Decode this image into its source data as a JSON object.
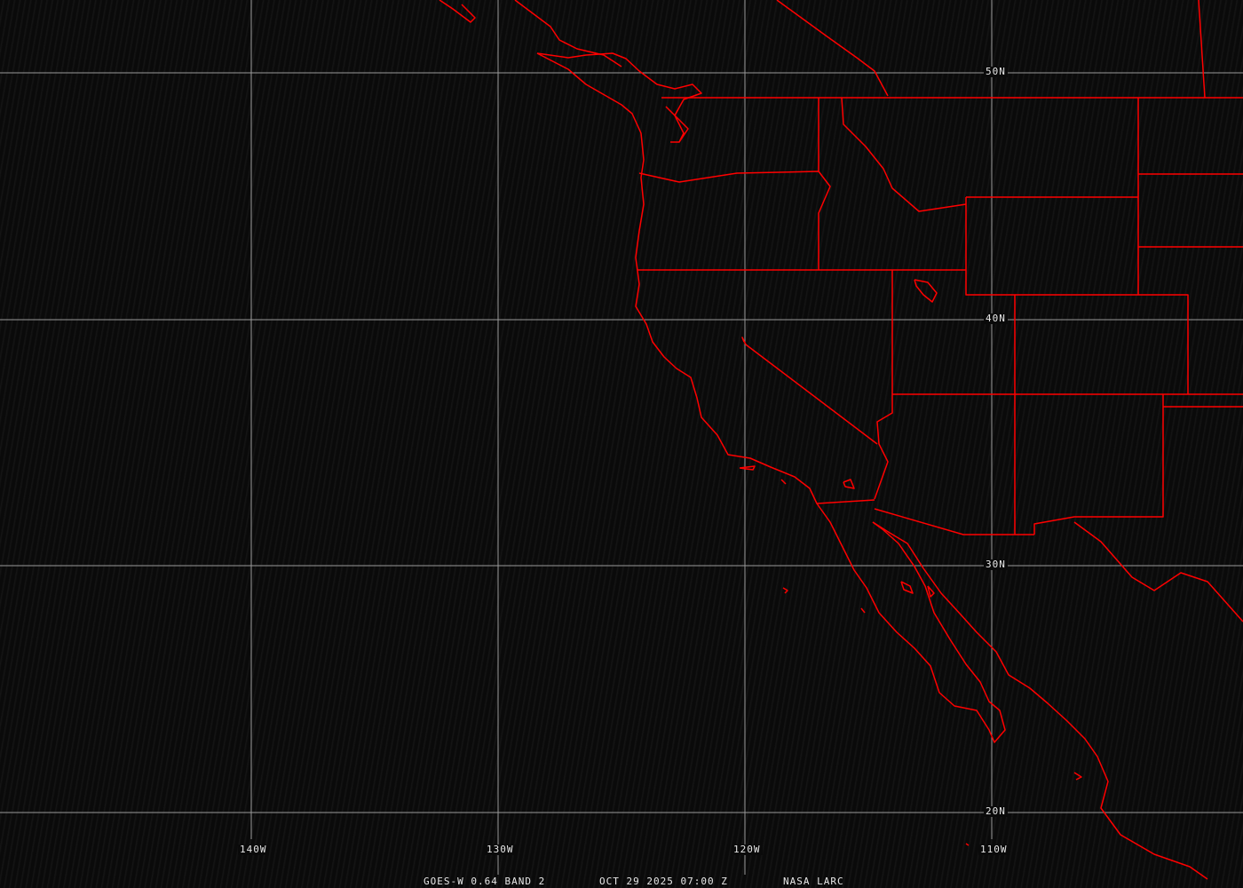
{
  "map": {
    "colors": {
      "background": "#0a0a0a",
      "grid": "#a0a0a0",
      "boundaries": "#ff0000",
      "labels": "#e8e8e8"
    },
    "latitude_labels": [
      "50N",
      "40N",
      "30N",
      "20N"
    ],
    "longitude_labels": [
      "140W",
      "130W",
      "120W",
      "110W"
    ]
  },
  "caption": {
    "product": "GOES-W 0.64 BAND 2",
    "datetime": "OCT 29 2025 07:00 Z",
    "source": "NASA LARC"
  }
}
